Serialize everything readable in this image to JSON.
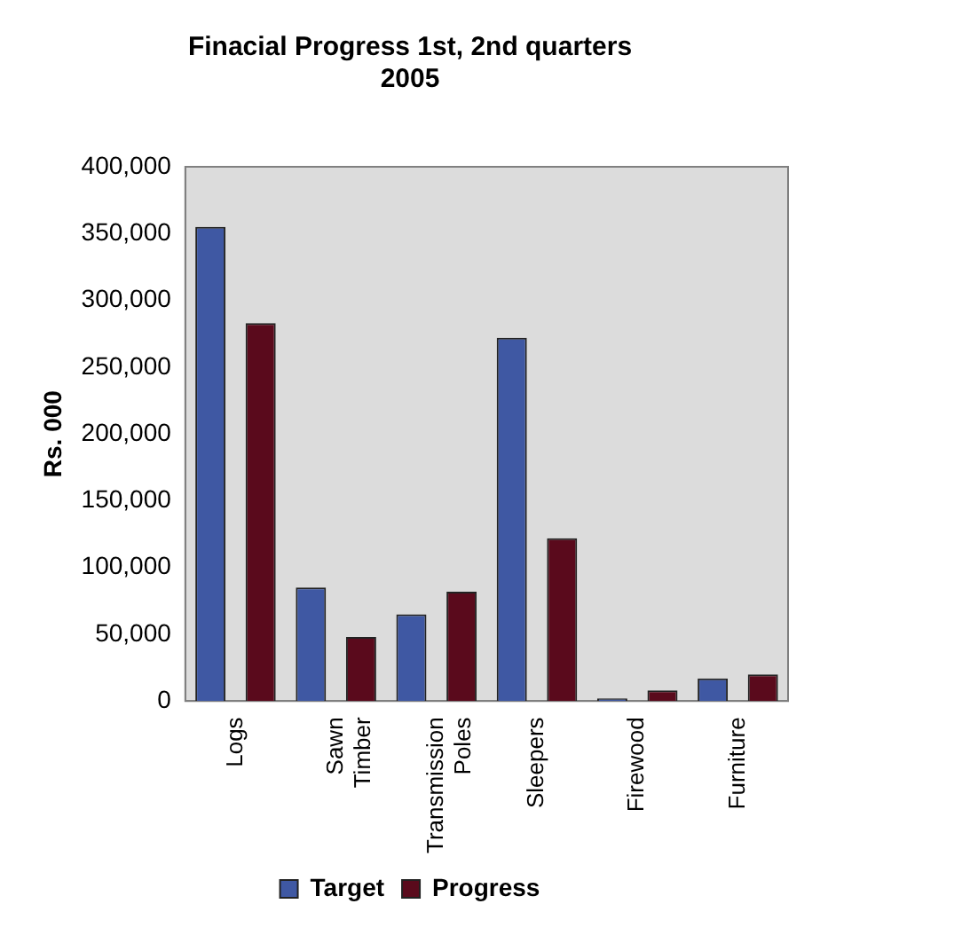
{
  "chart_data": {
    "type": "bar",
    "title": "Finacial Progress 1st, 2nd quarters\n2005",
    "ylabel": "Rs. 000",
    "categories": [
      "Logs",
      "Sawn Timber",
      "Transmission Poles",
      "Sleepers",
      "Firewood",
      "Furniture"
    ],
    "series": [
      {
        "name": "Target",
        "color": "#3f58a3",
        "values": [
          355000,
          85000,
          65000,
          272000,
          2000,
          17000
        ]
      },
      {
        "name": "Progress",
        "color": "#5a0a1c",
        "values": [
          283000,
          48000,
          82000,
          122000,
          8000,
          20000
        ]
      }
    ],
    "ylim": [
      0,
      400000
    ],
    "yticks": [
      {
        "value": 0,
        "label": "0"
      },
      {
        "value": 50000,
        "label": "50,000"
      },
      {
        "value": 100000,
        "label": "100,000"
      },
      {
        "value": 150000,
        "label": "150,000"
      },
      {
        "value": 200000,
        "label": "200,000"
      },
      {
        "value": 250000,
        "label": "250,000"
      },
      {
        "value": 300000,
        "label": "300,000"
      },
      {
        "value": 350000,
        "label": "350,000"
      },
      {
        "value": 400000,
        "label": "400,000"
      }
    ],
    "grid": false,
    "legend": "bottom"
  }
}
